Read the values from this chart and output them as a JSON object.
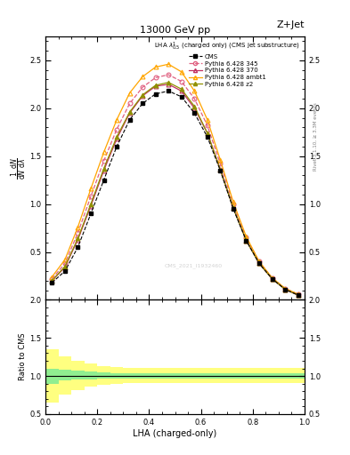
{
  "title_top": "13000 GeV pp",
  "title_right": "Z+Jet",
  "legend_title": "LHA $\\lambda^{1}_{0.5}$ (charged only) (CMS jet substructure)",
  "xlabel": "LHA (charged-only)",
  "watermark": "CMS_2021_I1932460",
  "right_label": "Rivet 3.1.10, ≥ 3.3M events",
  "xvals": [
    0.025,
    0.075,
    0.125,
    0.175,
    0.225,
    0.275,
    0.325,
    0.375,
    0.425,
    0.475,
    0.525,
    0.575,
    0.625,
    0.675,
    0.725,
    0.775,
    0.825,
    0.875,
    0.925,
    0.975
  ],
  "cms_data": [
    0.18,
    0.3,
    0.55,
    0.9,
    1.25,
    1.6,
    1.88,
    2.05,
    2.15,
    2.18,
    2.12,
    1.95,
    1.7,
    1.35,
    0.95,
    0.62,
    0.38,
    0.22,
    0.11,
    0.05
  ],
  "py345": [
    0.22,
    0.38,
    0.7,
    1.08,
    1.45,
    1.78,
    2.05,
    2.22,
    2.32,
    2.35,
    2.28,
    2.1,
    1.82,
    1.42,
    1.0,
    0.65,
    0.4,
    0.23,
    0.12,
    0.06
  ],
  "py370": [
    0.2,
    0.34,
    0.63,
    0.98,
    1.35,
    1.68,
    1.95,
    2.13,
    2.23,
    2.25,
    2.18,
    2.0,
    1.74,
    1.36,
    0.96,
    0.62,
    0.38,
    0.22,
    0.11,
    0.05
  ],
  "pyambt1": [
    0.24,
    0.42,
    0.76,
    1.16,
    1.54,
    1.88,
    2.16,
    2.33,
    2.43,
    2.46,
    2.38,
    2.18,
    1.88,
    1.46,
    1.02,
    0.66,
    0.4,
    0.23,
    0.12,
    0.06
  ],
  "pyz2": [
    0.2,
    0.35,
    0.64,
    1.0,
    1.37,
    1.7,
    1.96,
    2.14,
    2.24,
    2.27,
    2.2,
    2.02,
    1.74,
    1.36,
    0.96,
    0.62,
    0.38,
    0.22,
    0.11,
    0.05
  ],
  "ratio_green_lo": [
    0.9,
    0.94,
    0.95,
    0.96,
    0.97,
    0.97,
    0.97,
    0.97,
    0.97,
    0.97,
    0.97,
    0.97,
    0.97,
    0.97,
    0.97,
    0.97,
    0.97,
    0.97,
    0.97,
    0.97
  ],
  "ratio_green_hi": [
    1.1,
    1.08,
    1.07,
    1.06,
    1.05,
    1.04,
    1.04,
    1.04,
    1.04,
    1.04,
    1.04,
    1.04,
    1.04,
    1.04,
    1.04,
    1.04,
    1.04,
    1.04,
    1.04,
    1.04
  ],
  "ratio_yellow_lo": [
    0.65,
    0.76,
    0.82,
    0.86,
    0.89,
    0.9,
    0.91,
    0.91,
    0.91,
    0.91,
    0.91,
    0.91,
    0.91,
    0.91,
    0.91,
    0.91,
    0.91,
    0.91,
    0.91,
    0.91
  ],
  "ratio_yellow_hi": [
    1.35,
    1.26,
    1.2,
    1.16,
    1.13,
    1.12,
    1.11,
    1.11,
    1.11,
    1.11,
    1.11,
    1.11,
    1.11,
    1.11,
    1.11,
    1.11,
    1.11,
    1.11,
    1.11,
    1.11
  ],
  "color_345": "#e06080",
  "color_370": "#c03060",
  "color_ambt1": "#ffa500",
  "color_z2": "#909000",
  "color_green": "#90ee90",
  "color_yellow": "#ffff80",
  "ylim_main": [
    0,
    2.75
  ],
  "ylim_ratio": [
    0.5,
    2.0
  ],
  "yticks_main": [
    0.5,
    1.0,
    1.5,
    2.0,
    2.5
  ],
  "yticks_ratio": [
    0.5,
    1.0,
    1.5,
    2.0
  ]
}
